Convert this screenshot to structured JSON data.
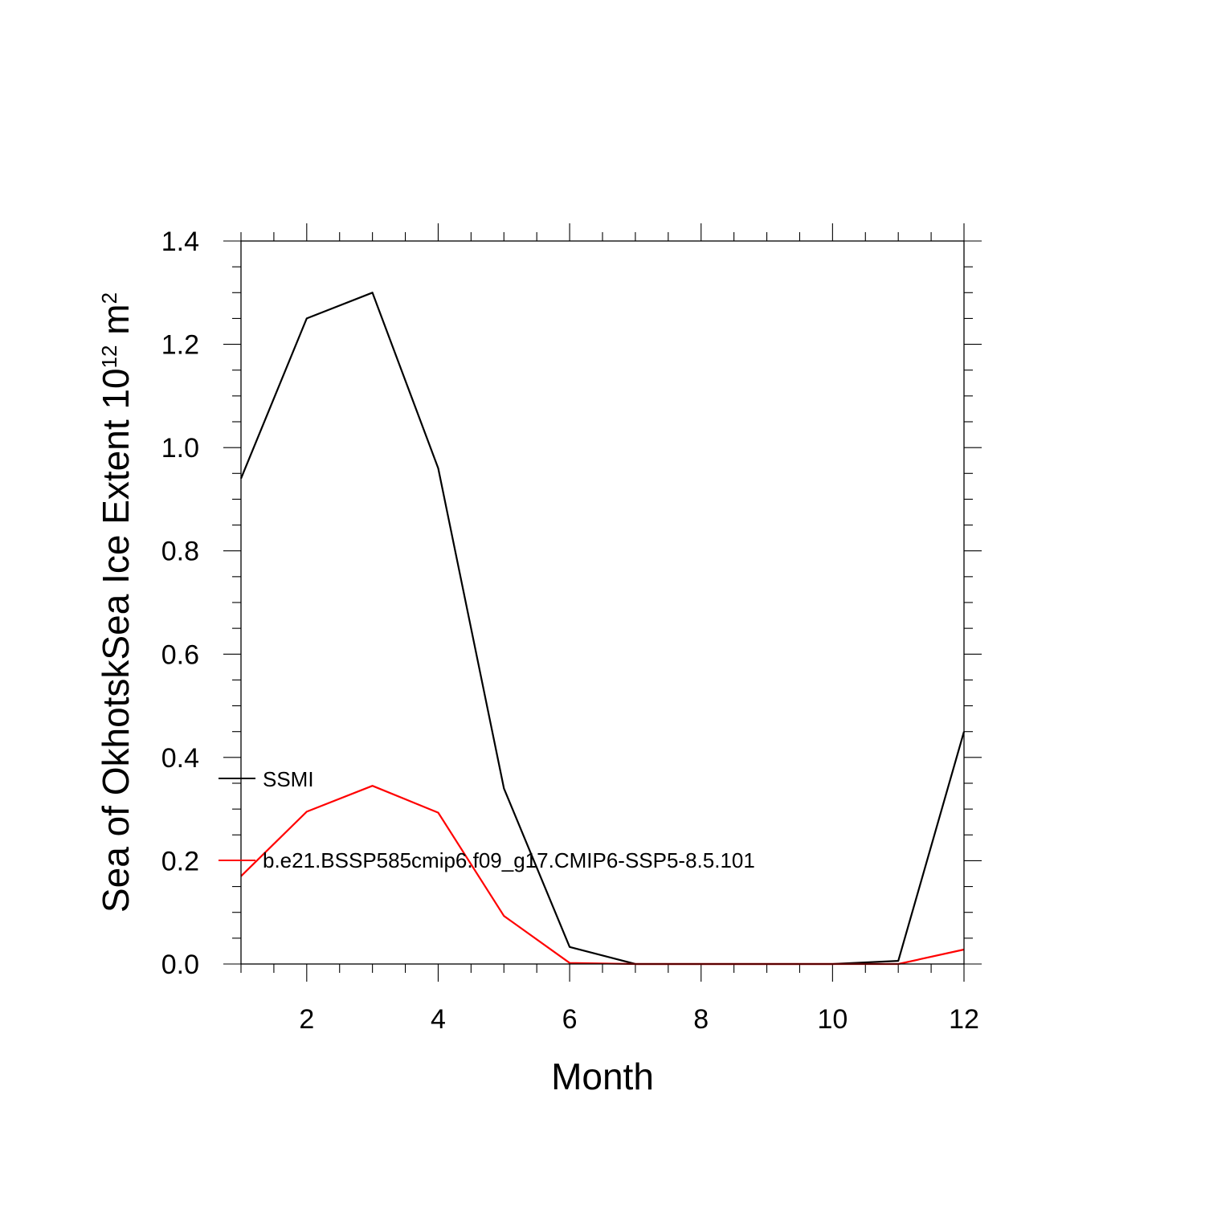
{
  "chart_data": {
    "type": "line",
    "xlabel": "Month",
    "ylabel": {
      "main": "Sea of OkhotskSea Ice Extent 10",
      "exponent": "12",
      "unit_base": " m",
      "unit_exponent": "2"
    },
    "xlim": [
      1,
      12
    ],
    "ylim": [
      0,
      1.4
    ],
    "x": [
      1,
      2,
      3,
      4,
      5,
      6,
      7,
      8,
      9,
      10,
      11,
      12
    ],
    "x_ticks": [
      2,
      4,
      6,
      8,
      10,
      12
    ],
    "x_tick_labels": [
      "2",
      "4",
      "6",
      "8",
      "10",
      "12"
    ],
    "y_ticks": [
      0,
      0.2,
      0.4,
      0.6,
      0.8,
      1.0,
      1.2,
      1.4
    ],
    "y_tick_labels": [
      "0.0",
      "0.2",
      "0.4",
      "0.6",
      "0.8",
      "1.0",
      "1.2",
      "1.4"
    ],
    "grid": false,
    "legend_position": "inside-left",
    "series": [
      {
        "name": "SSMI",
        "color": "#000000",
        "values": [
          0.94,
          1.25,
          1.3,
          0.96,
          0.34,
          0.033,
          0.0,
          0.0,
          0.0,
          0.0,
          0.006,
          0.45
        ]
      },
      {
        "name": "b.e21.BSSP585cmip6.f09_g17.CMIP6-SSP5-8.5.101",
        "color": "#ff0000",
        "values": [
          0.17,
          0.295,
          0.345,
          0.293,
          0.093,
          0.002,
          0.0,
          0.0,
          0.0,
          0.0,
          0.0,
          0.028
        ]
      }
    ]
  }
}
